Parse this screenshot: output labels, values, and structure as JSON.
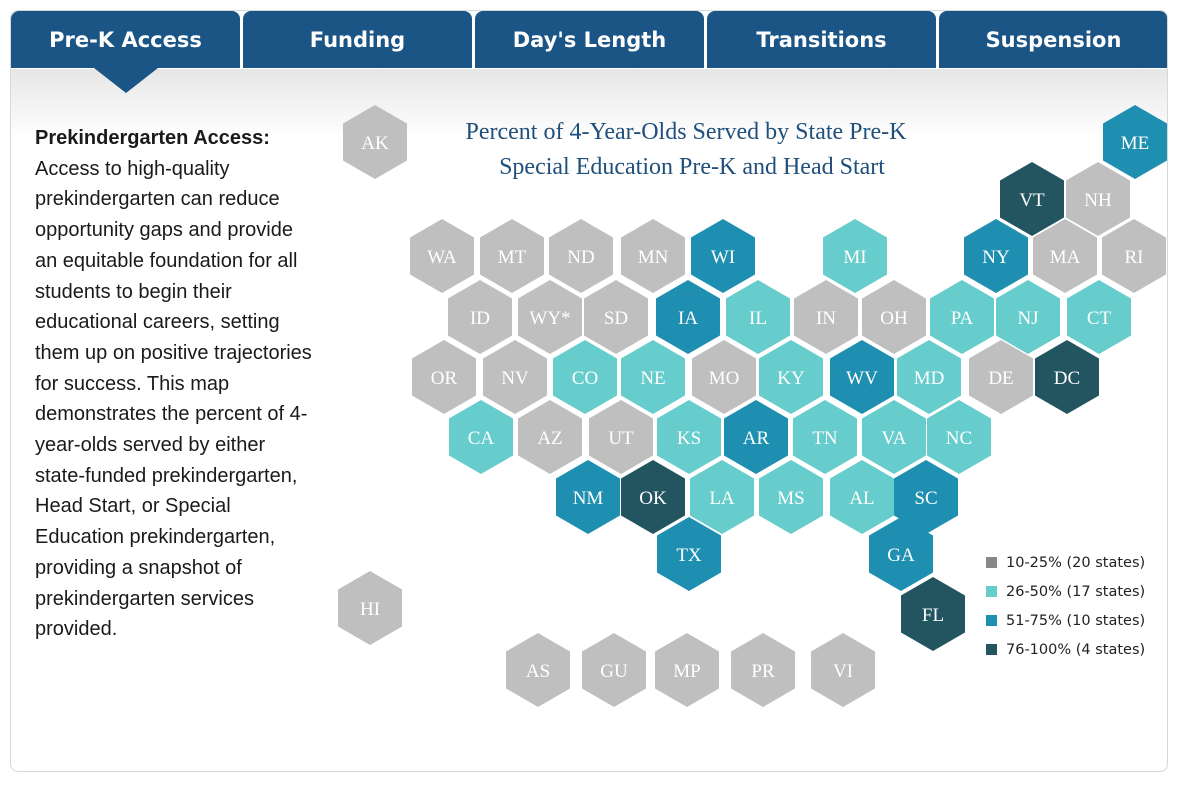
{
  "tabs": [
    {
      "label": "Pre-K Access",
      "active": true
    },
    {
      "label": "Funding",
      "active": false
    },
    {
      "label": "Day's Length",
      "active": false
    },
    {
      "label": "Transitions",
      "active": false
    },
    {
      "label": "Suspension",
      "active": false
    }
  ],
  "description": {
    "heading": "Prekindergarten Access:",
    "body": "Access to high-quality prekindergarten can reduce opportunity gaps and provide an equitable foundation for all students to begin their educational careers, setting them up on positive trajectories for success. This map demonstrates the percent of 4-year-olds served by either state-funded prekindergarten, Head Start, or Special Education prekindergarten, providing a snapshot of prekindergarten services provided."
  },
  "map": {
    "title_line1": "Percent of 4-Year-Olds Served by State Pre-K",
    "title_line2": "Special Education Pre-K and Head Start",
    "colors": {
      "c1": "#bfbfbf",
      "c2": "#66cccc",
      "c3": "#1e8fb0",
      "c4": "#235561"
    },
    "legend": [
      {
        "label": "10-25% (20 states)",
        "swatch": "#888888"
      },
      {
        "label": "26-50% (17 states)",
        "swatch": "#66cccc"
      },
      {
        "label": "51-75% (10 states)",
        "swatch": "#1e8fb0"
      },
      {
        "label": "76-100% (4 states)",
        "swatch": "#235561"
      }
    ],
    "states": [
      {
        "abbr": "AK",
        "cat": "c1"
      },
      {
        "abbr": "ME",
        "cat": "c3"
      },
      {
        "abbr": "VT",
        "cat": "c4"
      },
      {
        "abbr": "NH",
        "cat": "c1"
      },
      {
        "abbr": "WA",
        "cat": "c1"
      },
      {
        "abbr": "MT",
        "cat": "c1"
      },
      {
        "abbr": "ND",
        "cat": "c1"
      },
      {
        "abbr": "MN",
        "cat": "c1"
      },
      {
        "abbr": "WI",
        "cat": "c3"
      },
      {
        "abbr": "MI",
        "cat": "c2"
      },
      {
        "abbr": "NY",
        "cat": "c3"
      },
      {
        "abbr": "MA",
        "cat": "c1"
      },
      {
        "abbr": "RI",
        "cat": "c1"
      },
      {
        "abbr": "ID",
        "cat": "c1"
      },
      {
        "abbr": "WY*",
        "cat": "c1"
      },
      {
        "abbr": "SD",
        "cat": "c1"
      },
      {
        "abbr": "IA",
        "cat": "c3"
      },
      {
        "abbr": "IL",
        "cat": "c2"
      },
      {
        "abbr": "IN",
        "cat": "c1"
      },
      {
        "abbr": "OH",
        "cat": "c1"
      },
      {
        "abbr": "PA",
        "cat": "c2"
      },
      {
        "abbr": "NJ",
        "cat": "c2"
      },
      {
        "abbr": "CT",
        "cat": "c2"
      },
      {
        "abbr": "OR",
        "cat": "c1"
      },
      {
        "abbr": "NV",
        "cat": "c1"
      },
      {
        "abbr": "CO",
        "cat": "c2"
      },
      {
        "abbr": "NE",
        "cat": "c2"
      },
      {
        "abbr": "MO",
        "cat": "c1"
      },
      {
        "abbr": "KY",
        "cat": "c2"
      },
      {
        "abbr": "WV",
        "cat": "c3"
      },
      {
        "abbr": "MD",
        "cat": "c2"
      },
      {
        "abbr": "DE",
        "cat": "c1"
      },
      {
        "abbr": "DC",
        "cat": "c4"
      },
      {
        "abbr": "CA",
        "cat": "c2"
      },
      {
        "abbr": "AZ",
        "cat": "c1"
      },
      {
        "abbr": "UT",
        "cat": "c1"
      },
      {
        "abbr": "KS",
        "cat": "c2"
      },
      {
        "abbr": "AR",
        "cat": "c3"
      },
      {
        "abbr": "TN",
        "cat": "c2"
      },
      {
        "abbr": "VA",
        "cat": "c2"
      },
      {
        "abbr": "NC",
        "cat": "c2"
      },
      {
        "abbr": "NM",
        "cat": "c3"
      },
      {
        "abbr": "OK",
        "cat": "c4"
      },
      {
        "abbr": "LA",
        "cat": "c2"
      },
      {
        "abbr": "MS",
        "cat": "c2"
      },
      {
        "abbr": "AL",
        "cat": "c2"
      },
      {
        "abbr": "SC",
        "cat": "c3"
      },
      {
        "abbr": "TX",
        "cat": "c3"
      },
      {
        "abbr": "GA",
        "cat": "c3"
      },
      {
        "abbr": "HI",
        "cat": "c1"
      },
      {
        "abbr": "FL",
        "cat": "c4"
      },
      {
        "abbr": "AS",
        "cat": "c1"
      },
      {
        "abbr": "GU",
        "cat": "c1"
      },
      {
        "abbr": "MP",
        "cat": "c1"
      },
      {
        "abbr": "PR",
        "cat": "c1"
      },
      {
        "abbr": "VI",
        "cat": "c1"
      }
    ]
  }
}
